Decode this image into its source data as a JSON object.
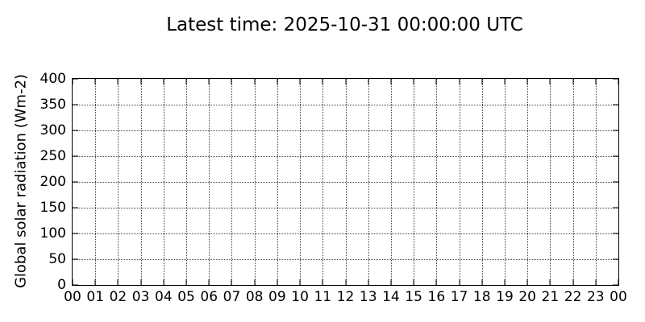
{
  "chart_data": {
    "type": "line",
    "title": "Latest time: 2025-10-31 00:00:00 UTC",
    "xlabel": "",
    "ylabel": "Global solar radiation (Wm-2)",
    "x_tick_labels": [
      "00",
      "01",
      "02",
      "03",
      "04",
      "05",
      "06",
      "07",
      "08",
      "09",
      "10",
      "11",
      "12",
      "13",
      "14",
      "15",
      "16",
      "17",
      "18",
      "19",
      "20",
      "21",
      "22",
      "23",
      "00"
    ],
    "y_ticks": [
      0,
      50,
      100,
      150,
      200,
      250,
      300,
      350,
      400
    ],
    "ylim": [
      0,
      400
    ],
    "xlim": [
      0,
      24
    ],
    "grid": true,
    "grid_style": "dotted",
    "legend": "none",
    "series": [
      {
        "name": "Global solar radiation",
        "x": [],
        "values": []
      }
    ],
    "colors": {
      "background": "#ffffff",
      "text": "#000000",
      "axis": "#000000",
      "grid": "#444444"
    }
  }
}
